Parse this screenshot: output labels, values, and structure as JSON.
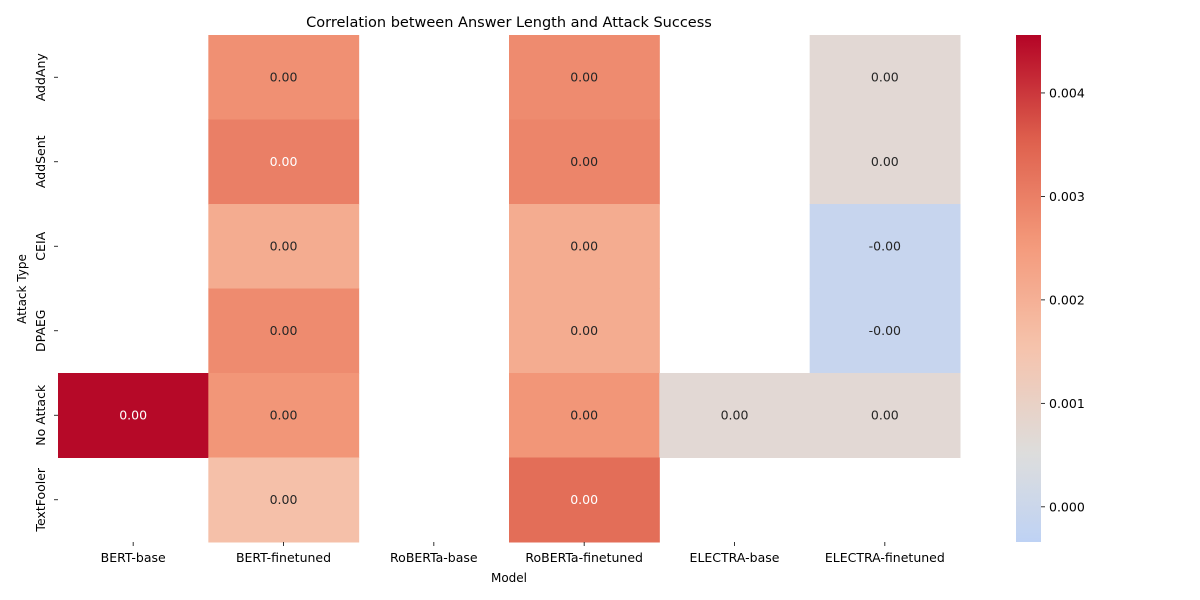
{
  "chart_data": {
    "type": "heatmap",
    "title": "Correlation between Answer Length and Attack Success",
    "xlabel": "Model",
    "ylabel": "Attack Type",
    "columns": [
      "BERT-base",
      "BERT-finetuned",
      "RoBERTa-base",
      "RoBERTa-finetuned",
      "ELECTRA-base",
      "ELECTRA-finetuned"
    ],
    "rows": [
      "AddAny",
      "AddSent",
      "CEIA",
      "DPAEG",
      "No Attack",
      "TextFooler"
    ],
    "values": [
      [
        null,
        0.0027,
        null,
        0.0028,
        null,
        0.0007
      ],
      [
        null,
        0.003,
        null,
        0.0029,
        null,
        0.0007
      ],
      [
        null,
        0.0021,
        null,
        0.0021,
        null,
        -0.0001
      ],
      [
        null,
        0.0028,
        null,
        0.0021,
        null,
        -0.0001
      ],
      [
        0.0045,
        0.0026,
        null,
        0.0026,
        0.0007,
        0.0007
      ],
      [
        null,
        0.0016,
        null,
        0.0033,
        null,
        null
      ]
    ],
    "cell_labels": [
      [
        null,
        "0.00",
        null,
        "0.00",
        null,
        "0.00"
      ],
      [
        null,
        "0.00",
        null,
        "0.00",
        null,
        "0.00"
      ],
      [
        null,
        "0.00",
        null,
        "0.00",
        null,
        "-0.00"
      ],
      [
        null,
        "0.00",
        null,
        "0.00",
        null,
        "-0.00"
      ],
      [
        "0.00",
        "0.00",
        null,
        "0.00",
        "0.00",
        "0.00"
      ],
      [
        null,
        "0.00",
        null,
        "0.00",
        null,
        null
      ]
    ],
    "colorscale": "coolwarm",
    "center": 0.0005,
    "vmin": -0.00034,
    "vmax": 0.00456,
    "colorbar_ticks": [
      0.0,
      0.001,
      0.002,
      0.003,
      0.004
    ],
    "colorbar_tick_labels": [
      "0.000",
      "0.001",
      "0.002",
      "0.003",
      "0.004"
    ],
    "grid": false,
    "legend": "colorbar-right"
  }
}
